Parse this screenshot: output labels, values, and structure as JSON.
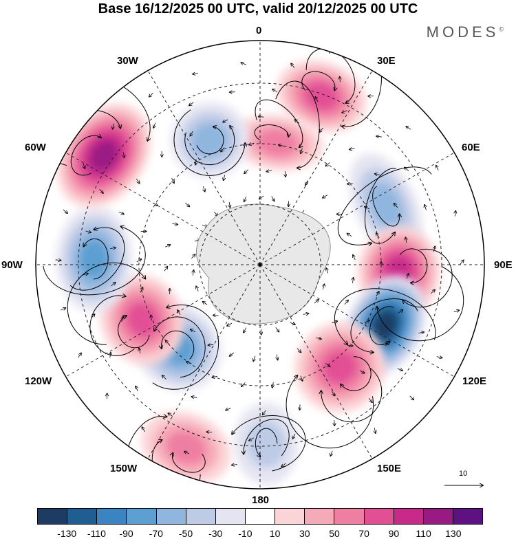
{
  "title": "Base 16/12/2025 00 UTC, valid 20/12/2025 00 UTC",
  "brand": "MODES",
  "brand_mark": "©",
  "longitudes": {
    "top": "0",
    "e30": "30E",
    "e60": "60E",
    "e90": "90E",
    "e120": "120E",
    "e150": "150E",
    "bottom": "180",
    "w150": "150W",
    "w120": "120W",
    "w90": "90W",
    "w60": "60W",
    "w30": "30W"
  },
  "vector_ref": "10",
  "colorbar": {
    "colors": [
      "#1c3c63",
      "#1f5e93",
      "#3a84c1",
      "#5c9fd2",
      "#8fb6df",
      "#bdcbe6",
      "#e5e5f2",
      "#ffffff",
      "#fbd4d7",
      "#f6aab8",
      "#ef7ea3",
      "#e24f95",
      "#c92a8a",
      "#9a1a84",
      "#5e1180"
    ],
    "ticks": [
      "-130",
      "-110",
      "-90",
      "-70",
      "-50",
      "-30",
      "-10",
      "10",
      "30",
      "50",
      "70",
      "90",
      "110",
      "130"
    ]
  },
  "anomalies": [
    {
      "name": "anomaly-high-30e",
      "lon": 20,
      "r": 0.8,
      "value": 70,
      "sx": 55,
      "sy": 40
    },
    {
      "name": "anomaly-high-0",
      "lon": 8,
      "r": 0.55,
      "value": 60,
      "sx": 55,
      "sy": 30
    },
    {
      "name": "anomaly-low-60e",
      "lon": 65,
      "r": 0.62,
      "value": -60,
      "sx": 70,
      "sy": 35
    },
    {
      "name": "anomaly-high-90e",
      "lon": 93,
      "r": 0.62,
      "value": 95,
      "sx": 55,
      "sy": 50
    },
    {
      "name": "anomaly-low-115e",
      "lon": 116,
      "r": 0.62,
      "value": -130,
      "sx": 65,
      "sy": 45
    },
    {
      "name": "anomaly-high-140e",
      "lon": 142,
      "r": 0.58,
      "value": 80,
      "sx": 55,
      "sy": 55
    },
    {
      "name": "anomaly-low-175e",
      "lon": 178,
      "r": 0.8,
      "value": -40,
      "sx": 35,
      "sy": 50
    },
    {
      "name": "anomaly-high-160w",
      "lon": -158,
      "r": 0.88,
      "value": 60,
      "sx": 55,
      "sy": 40
    },
    {
      "name": "anomaly-low-135w",
      "lon": -135,
      "r": 0.52,
      "value": -70,
      "sx": 55,
      "sy": 50
    },
    {
      "name": "anomaly-high-115w",
      "lon": -115,
      "r": 0.58,
      "value": 80,
      "sx": 55,
      "sy": 50
    },
    {
      "name": "anomaly-low-90w",
      "lon": -88,
      "r": 0.74,
      "value": -80,
      "sx": 65,
      "sy": 45
    },
    {
      "name": "anomaly-high-55w",
      "lon": -55,
      "r": 0.85,
      "value": 120,
      "sx": 70,
      "sy": 50
    },
    {
      "name": "anomaly-low-25w",
      "lon": -22,
      "r": 0.6,
      "value": -50,
      "sx": 45,
      "sy": 45
    }
  ]
}
